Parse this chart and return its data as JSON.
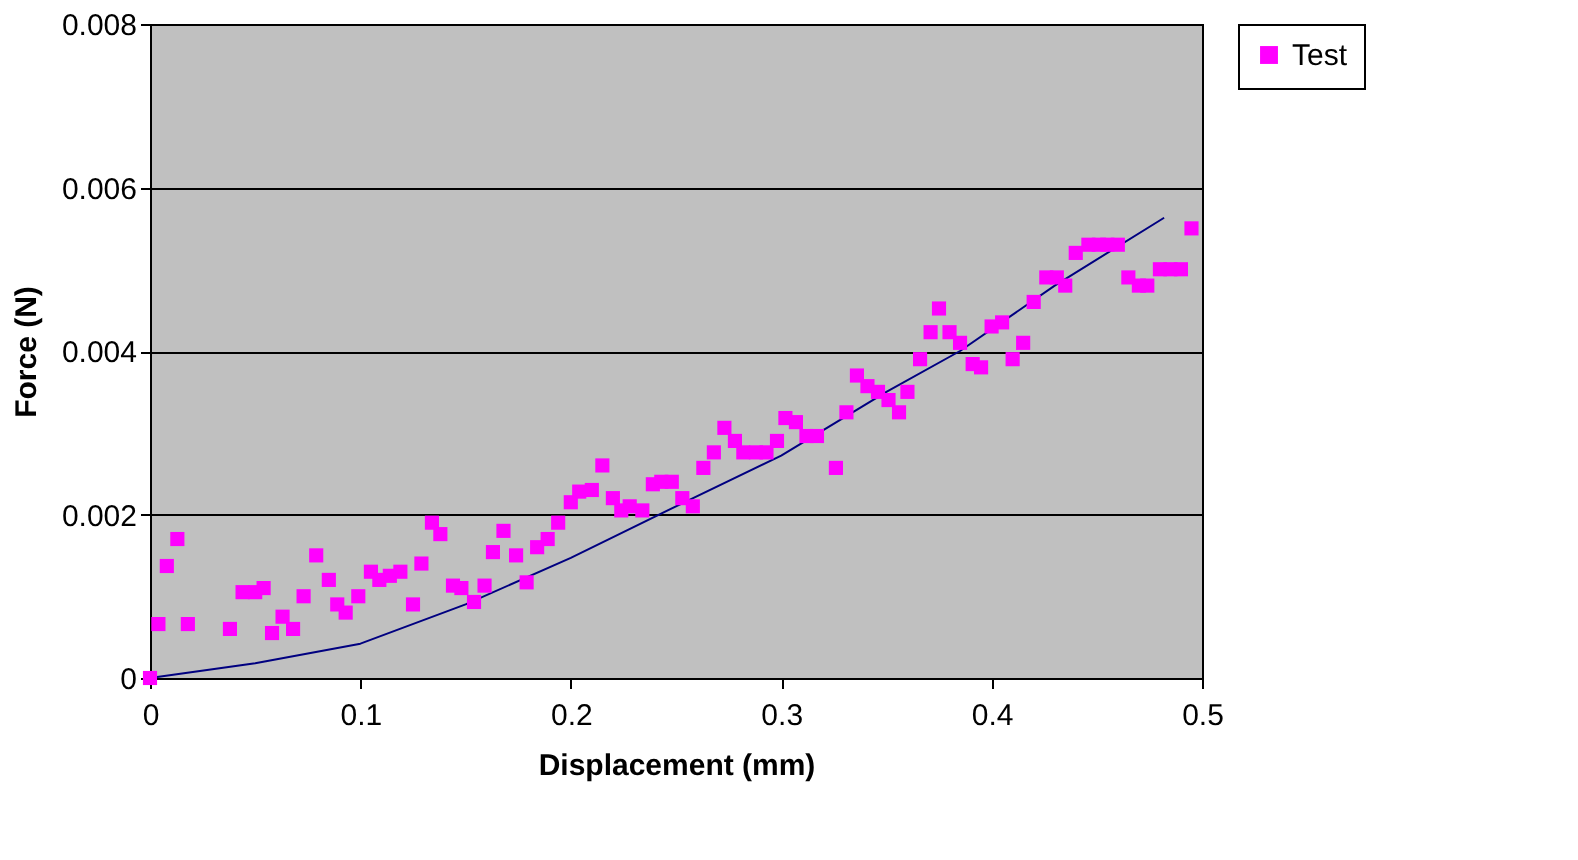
{
  "chart_data": {
    "type": "scatter",
    "xlabel": "Displacement (mm)",
    "ylabel": "Force (N)",
    "xlim": [
      0,
      0.5
    ],
    "ylim": [
      0,
      0.008
    ],
    "xticks": [
      0,
      0.1,
      0.2,
      0.3,
      0.4,
      0.5
    ],
    "yticks": [
      0,
      0.002,
      0.004,
      0.006,
      0.008
    ],
    "grid": "y",
    "legend": "right",
    "marker": "square",
    "series": [
      {
        "type": "line",
        "marker": "none",
        "color": "#000080",
        "x": [
          0,
          0.05,
          0.1,
          0.15,
          0.2,
          0.25,
          0.3,
          0.35,
          0.385,
          0.43,
          0.482
        ],
        "values": [
          0,
          0.00018,
          0.00042,
          0.0009,
          0.00147,
          0.0021,
          0.00272,
          0.0035,
          0.004,
          0.0048,
          0.00563
        ]
      },
      {
        "name": "Test",
        "color": "#ff00ff",
        "x": [
          0,
          0.004,
          0.008,
          0.013,
          0.018,
          0.038,
          0.044,
          0.05,
          0.054,
          0.058,
          0.063,
          0.068,
          0.073,
          0.079,
          0.085,
          0.089,
          0.093,
          0.099,
          0.105,
          0.109,
          0.114,
          0.119,
          0.125,
          0.129,
          0.134,
          0.138,
          0.144,
          0.148,
          0.154,
          0.159,
          0.163,
          0.168,
          0.174,
          0.179,
          0.184,
          0.189,
          0.194,
          0.2,
          0.204,
          0.21,
          0.215,
          0.22,
          0.224,
          0.228,
          0.234,
          0.239,
          0.243,
          0.248,
          0.253,
          0.258,
          0.263,
          0.268,
          0.273,
          0.278,
          0.282,
          0.288,
          0.293,
          0.298,
          0.302,
          0.307,
          0.312,
          0.317,
          0.326,
          0.331,
          0.336,
          0.341,
          0.346,
          0.351,
          0.356,
          0.36,
          0.366,
          0.371,
          0.375,
          0.38,
          0.385,
          0.391,
          0.395,
          0.4,
          0.405,
          0.41,
          0.415,
          0.42,
          0.426,
          0.431,
          0.435,
          0.44,
          0.446,
          0.451,
          0.455,
          0.46,
          0.465,
          0.47,
          0.474,
          0.48,
          0.485,
          0.49,
          0.495
        ],
        "values": [
          0,
          0.00066,
          0.00137,
          0.0017,
          0.00066,
          0.0006,
          0.00105,
          0.00105,
          0.0011,
          0.00055,
          0.00075,
          0.0006,
          0.001,
          0.0015,
          0.0012,
          0.0009,
          0.0008,
          0.001,
          0.0013,
          0.0012,
          0.00125,
          0.0013,
          0.0009,
          0.0014,
          0.0019,
          0.00176,
          0.00113,
          0.0011,
          0.00093,
          0.00113,
          0.00154,
          0.0018,
          0.0015,
          0.00117,
          0.0016,
          0.0017,
          0.0019,
          0.00215,
          0.00228,
          0.0023,
          0.0026,
          0.0022,
          0.00205,
          0.0021,
          0.00205,
          0.00237,
          0.0024,
          0.0024,
          0.0022,
          0.0021,
          0.00257,
          0.00276,
          0.00306,
          0.0029,
          0.00276,
          0.00276,
          0.00276,
          0.0029,
          0.00318,
          0.00313,
          0.00296,
          0.00296,
          0.00257,
          0.00325,
          0.0037,
          0.00357,
          0.0035,
          0.0034,
          0.00325,
          0.0035,
          0.0039,
          0.00423,
          0.00452,
          0.00423,
          0.0041,
          0.00384,
          0.0038,
          0.0043,
          0.00435,
          0.0039,
          0.0041,
          0.0046,
          0.0049,
          0.0049,
          0.0048,
          0.0052,
          0.0053,
          0.0053,
          0.0053,
          0.0053,
          0.0049,
          0.0048,
          0.0048,
          0.005,
          0.005,
          0.005,
          0.0055
        ]
      }
    ]
  }
}
